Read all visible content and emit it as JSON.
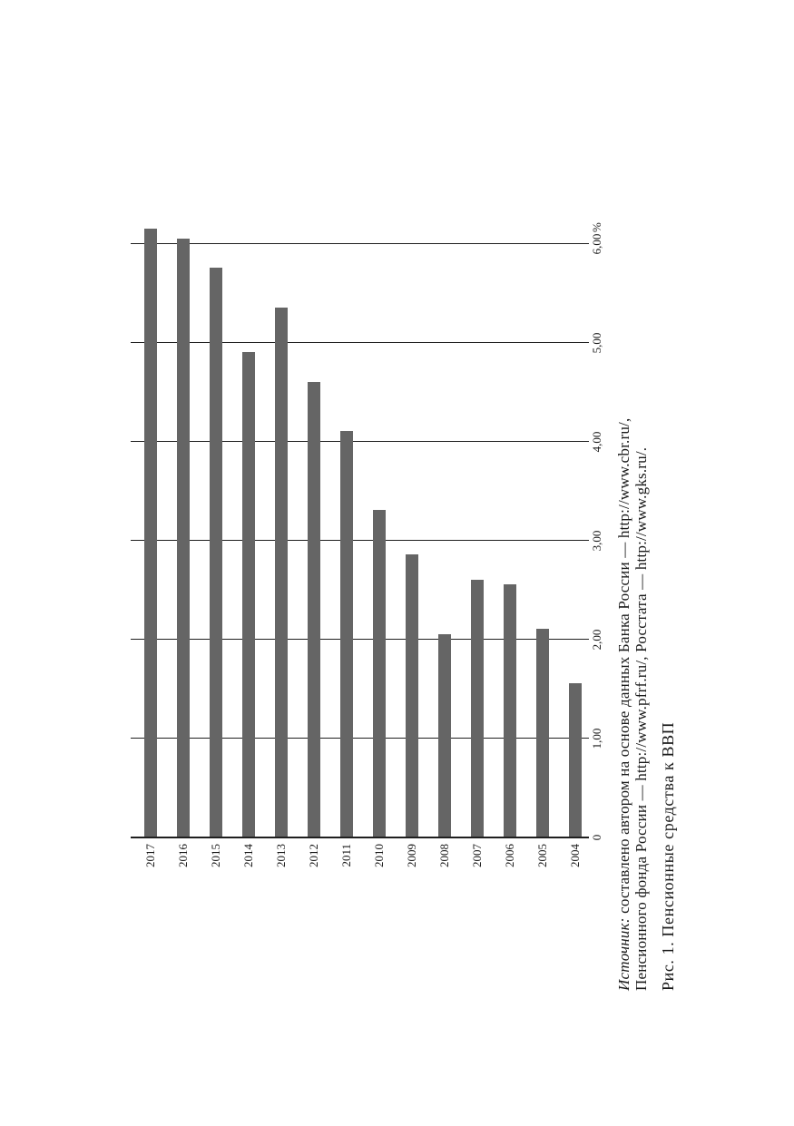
{
  "page": {
    "background": "#ffffff"
  },
  "figure": {
    "source": {
      "label_italic": "Источник:",
      "line1_rest": "составлено автором на основе данных Банка России — http://www.cbr.ru/,",
      "line2": "Пенсионного фонда России — http://www.pfrf.ru/, Росстата — http://www.gks.ru/."
    },
    "caption": "Рис. 1. Пенсионные средства к ВВП"
  },
  "chart_data": {
    "type": "bar",
    "title": "",
    "orientation": "horizontal bars; whole figure rotated 90deg CCW on the page so bars read as vertical columns",
    "categories": [
      "2017",
      "2016",
      "2015",
      "2014",
      "2013",
      "2012",
      "2011",
      "2010",
      "2009",
      "2008",
      "2007",
      "2006",
      "2005",
      "2004"
    ],
    "values": [
      6.15,
      6.05,
      5.75,
      4.9,
      5.35,
      4.6,
      4.1,
      3.3,
      2.85,
      2.05,
      2.6,
      2.55,
      2.1,
      1.55
    ],
    "value_axis": {
      "tick_values": [
        0,
        1,
        2,
        3,
        4,
        5,
        6
      ],
      "tick_labels": [
        "0",
        "1,00",
        "2,00",
        "3,00",
        "4,00",
        "5,00",
        "6,00"
      ],
      "unit_label": "%",
      "range": [
        0,
        6.3
      ]
    },
    "grid": true,
    "legend": false,
    "colors": {
      "bar": "#656565",
      "axis": "#1f1f1f",
      "gridline": "#1f1f1f",
      "text": "#1a1a1a"
    }
  }
}
